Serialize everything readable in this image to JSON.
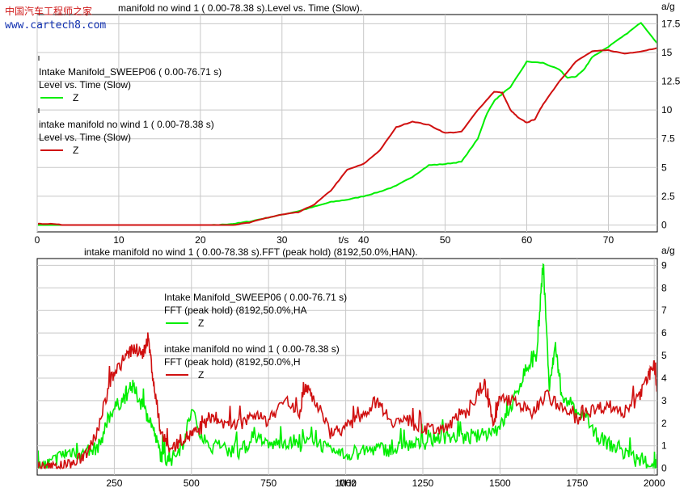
{
  "watermark": {
    "line1": "中国汽车工程师之家",
    "line2": "www.cartech8.com"
  },
  "chart_data": [
    {
      "type": "line",
      "header": "manifold no wind  1 ( 0.00-78.38 s).Level vs. Time (Slow).",
      "xlabel": "t/s",
      "ylabel": "a/g",
      "xlim": [
        0,
        76
      ],
      "ylim": [
        -0.6,
        18.3
      ],
      "xticks": [
        0,
        10,
        20,
        30,
        40,
        50,
        60,
        70
      ],
      "yticks": [
        0,
        2.5,
        5,
        7.5,
        10,
        12.5,
        15,
        17.5
      ],
      "grid": true,
      "legend_position": "top-left",
      "series": [
        {
          "name": "Z",
          "color": "#00ee00",
          "legend_title": "Intake Manifold_SWEEP06 ( 0.00-76.71 s)",
          "legend_subtitle": "Level vs. Time (Slow)",
          "x": [
            0,
            5,
            10,
            15,
            20,
            22,
            24,
            26,
            28,
            30,
            32,
            34,
            36,
            38,
            40,
            42,
            44,
            46,
            48,
            50,
            52,
            54,
            55,
            56,
            57,
            58,
            60,
            62,
            64,
            65,
            66,
            67,
            68,
            70,
            72,
            74,
            76
          ],
          "y": [
            -0.1,
            -0.1,
            -0.1,
            -0.1,
            -0.1,
            0,
            0.1,
            0.3,
            0.6,
            0.9,
            1.2,
            1.6,
            2,
            2.2,
            2.5,
            2.9,
            3.4,
            4.2,
            5.2,
            5.3,
            5.5,
            7.5,
            9.5,
            10.8,
            11.4,
            12,
            14.2,
            14.1,
            13.5,
            12.8,
            12.9,
            13.5,
            14.6,
            15.5,
            16.5,
            17.6,
            15.8
          ]
        },
        {
          "name": "Z",
          "color": "#d01010",
          "legend_title": "intake manifold no wind  1 ( 0.00-78.38 s)",
          "legend_subtitle": "Level vs. Time (Slow)",
          "x": [
            0,
            2,
            4,
            10,
            15,
            20,
            24,
            26,
            28,
            30,
            32,
            34,
            36,
            38,
            40,
            42,
            44,
            46,
            48,
            50,
            52,
            54,
            56,
            57,
            58,
            59,
            60,
            61,
            62,
            64,
            66,
            68,
            70,
            72,
            74,
            76
          ],
          "y": [
            0.1,
            0.1,
            -0.1,
            -0.1,
            -0.1,
            -0.1,
            0,
            0.2,
            0.6,
            0.9,
            1.1,
            1.8,
            3,
            4.8,
            5.3,
            6.5,
            8.5,
            9,
            8.7,
            8,
            8.1,
            10,
            11.6,
            11.5,
            10,
            9.3,
            8.9,
            9.2,
            10.5,
            12.5,
            14.2,
            15.1,
            15.2,
            14.9,
            15.1,
            15.4
          ]
        }
      ]
    },
    {
      "type": "line",
      "header": "intake manifold no wind  1 ( 0.00-78.38 s).FFT (peak hold) (8192,50.0%,HAN).",
      "xlabel": "f/Hz",
      "ylabel": "a/g",
      "xlim": [
        0,
        2010
      ],
      "ylim": [
        -0.3,
        9.3
      ],
      "xticks": [
        250,
        500,
        750,
        1000,
        1250,
        1500,
        1750,
        2000
      ],
      "yticks": [
        0,
        1,
        2,
        3,
        4,
        5,
        6,
        7,
        8,
        9
      ],
      "grid": true,
      "legend_position": "top-left",
      "series": [
        {
          "name": "Z",
          "color": "#00ee00",
          "legend_title": "Intake Manifold_SWEEP06 ( 0.00-76.71 s)",
          "legend_subtitle": "FFT (peak hold) (8192,50.0%,HA",
          "x": [
            0,
            40,
            80,
            120,
            160,
            200,
            240,
            280,
            310,
            340,
            370,
            400,
            430,
            470,
            500,
            550,
            600,
            650,
            700,
            750,
            800,
            850,
            900,
            950,
            1000,
            1050,
            1100,
            1150,
            1200,
            1250,
            1300,
            1350,
            1400,
            1450,
            1500,
            1540,
            1580,
            1620,
            1640,
            1660,
            1680,
            1700,
            1750,
            1800,
            1850,
            1900,
            1950,
            2000,
            2010
          ],
          "y": [
            0,
            0.2,
            0.6,
            0.8,
            0.6,
            1.0,
            2.5,
            3.1,
            3.6,
            2.8,
            2.0,
            0.6,
            0.3,
            1.0,
            2.5,
            1.0,
            0.9,
            0.7,
            1.2,
            1.0,
            1.2,
            1.0,
            1.3,
            0.7,
            0.6,
            0.7,
            0.9,
            0.8,
            1.0,
            1.1,
            1.4,
            1.4,
            1.3,
            1.5,
            1.8,
            2.8,
            4.3,
            5.0,
            9.2,
            3.5,
            5.5,
            3.0,
            2.5,
            1.6,
            1.1,
            0.7,
            0.3,
            0.2,
            0.1
          ]
        },
        {
          "name": "Z",
          "color": "#d01010",
          "legend_title": "intake manifold no wind  1 ( 0.00-78.38 s)",
          "legend_subtitle": "FFT (peak hold) (8192,50.0%,H",
          "x": [
            0,
            40,
            80,
            120,
            160,
            200,
            240,
            280,
            310,
            340,
            360,
            380,
            400,
            430,
            470,
            500,
            530,
            560,
            600,
            650,
            700,
            750,
            800,
            850,
            870,
            900,
            950,
            1000,
            1050,
            1100,
            1150,
            1200,
            1250,
            1300,
            1350,
            1400,
            1450,
            1480,
            1500,
            1550,
            1600,
            1650,
            1700,
            1750,
            1800,
            1850,
            1900,
            1950,
            1980,
            2000,
            2010
          ],
          "y": [
            0,
            0,
            0.1,
            0.2,
            0.7,
            1.8,
            4.0,
            4.8,
            5.3,
            5.0,
            5.8,
            3.5,
            1.6,
            0.8,
            1.3,
            1.5,
            1.7,
            2.3,
            2.0,
            1.9,
            2.3,
            2.1,
            3.0,
            2.5,
            3.7,
            3.0,
            1.6,
            1.8,
            2.3,
            3.0,
            2.1,
            2.1,
            1.7,
            1.7,
            2.1,
            2.6,
            3.7,
            2.0,
            3.1,
            3.0,
            2.4,
            3.3,
            2.6,
            2.2,
            2.6,
            2.8,
            2.5,
            3.1,
            4.0,
            4.7,
            3.3
          ]
        }
      ]
    }
  ]
}
